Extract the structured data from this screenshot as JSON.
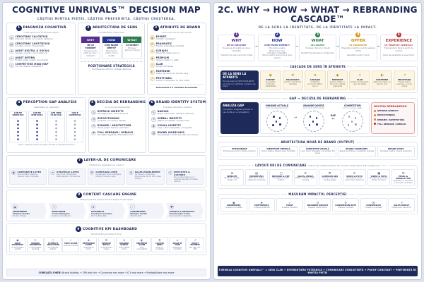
{
  "l": {
    "title": "COGNITIVE UNRIVALS™ DECISION MAP",
    "subtitle": "CÂȘTIGI MINTEA PIEȚEI. CÂȘTIGI PREFERINȚA. CÂȘTIGI CREȘTEREA.",
    "b1": {
      "n": "1",
      "t": "DIAGNOZĂ COGNITIVĂ",
      "s": "Unde ești acum în mintea pieței?",
      "items": [
        {
          "i": "qualitative-research-icon",
          "t": "CERCETARE CALITATIVĂ",
          "d": "Interviuri clienți, non-clienți, parteneri"
        },
        {
          "i": "quantitative-research-icon",
          "t": "CERCETARE CANTITATIVĂ",
          "d": "Sondaje, scoruri de percepție"
        },
        {
          "i": "digital-audit-icon",
          "t": "AUDIT DIGITAL & SOCIAL",
          "d": "Google, recenzii, social listening"
        },
        {
          "i": "internal-audit-icon",
          "t": "AUDIT INTERN",
          "d": "Echipă, sales, suport, documente"
        },
        {
          "i": "competitor-map-icon",
          "t": "COMPETITOR MIND MAP",
          "d": "Ce cred despre competitori?"
        }
      ]
    },
    "b2": {
      "n": "2",
      "t": "ARHITECTURA DE SENS",
      "s": "Fundamentul mărcii tale",
      "cols": [
        {
          "h": "WHY",
          "q": "De ce existăm?",
          "d": "Tensiunea din piață pe care o rezolvăm",
          "cls": "c-why"
        },
        {
          "h": "HOW",
          "q": "Cum facem diferit?",
          "d": "Mecanismul nostru unic & credibil",
          "cls": "c-how"
        },
        {
          "h": "WHAT",
          "q": "Ce livrăm?",
          "d": "Produse / Servicii / Soluții",
          "cls": "c-what"
        }
      ],
      "pos_t": "POZIȚIONARE STRATEGICĂ",
      "pos_d": "Promisiunea unică în mintea clientului"
    },
    "b3": {
      "n": "3",
      "t": "ATRIBUTE DE BRAND",
      "s": "Cum vrem să fim percepuți?",
      "items": [
        {
          "i": "expert-icon",
          "t": "EXPERT",
          "d": "Credibil, competent"
        },
        {
          "i": "pragmatic-icon",
          "t": "PRAGMATIC",
          "d": "Practic, orientat pe rezultate"
        },
        {
          "i": "curajos-icon",
          "t": "CURAJOS",
          "d": "Provocăm status quo-ul"
        },
        {
          "i": "premium-icon",
          "t": "PREMIUM",
          "d": "Valoare înaltă, nu ieftin"
        },
        {
          "i": "clar-icon",
          "t": "CLAR",
          "d": "Simplu de înțeles"
        },
        {
          "i": "partener-icon",
          "t": "PARTENER",
          "d": "Alături de client, pe termen lung"
        },
        {
          "i": "profitabil-icon",
          "t": "PROFITABIL",
          "d": "Impact în business, nu doar vizibil"
        }
      ],
      "note": "Selectează 5-7 atribute dominante"
    },
    "b4": {
      "n": "4",
      "t": "PERCEPTION GAP ANALYSIS",
      "s": "Realitatea vs. aspirația",
      "cols": [
        "CUM NE VEDEM NOI",
        "CUM NE VEDE PIAȚA",
        "CUM CRED CĂ NE VĂD",
        "CUM E COMPETIȚIA"
      ],
      "note": "Gap = Distanța dintre percepția actuală și aspirația de brand"
    },
    "b5": {
      "n": "5",
      "t": "DECIZIA DE REBRANDING",
      "s": "Ce nivel de intervenție?",
      "items": [
        {
          "i": "refresh-icon",
          "t": "REFRESH IDENTITY",
          "d": "Percepție bună, vizual învechit"
        },
        {
          "i": "repositioning-icon",
          "t": "REPOSITIONING",
          "d": "Confuzie, nu suntem înțeleși"
        },
        {
          "i": "rename-icon",
          "t": "RENAME / ARHITECTURĂ",
          "d": "Nume greșit, fuziune, extindere"
        },
        {
          "i": "rebuild-icon",
          "t": "FULL REBRAND / REBUILD",
          "d": "Percepție negativă, diferențiere zero"
        }
      ]
    },
    "b6": {
      "n": "6",
      "t": "BRAND IDENTITY SYSTEM",
      "s": "Expresia vizuală & verbală",
      "items": [
        {
          "i": "naming-icon",
          "t": "NAMING",
          "d": "Nume memorabil, relevant, distinctiv"
        },
        {
          "i": "verbal-identity-icon",
          "t": "VERBAL IDENTITY",
          "d": "Tagline, tonalitate, mesaje cheie"
        },
        {
          "i": "visual-identity-icon",
          "t": "VISUAL IDENTITY",
          "d": "Logo, culori, tipografie, iconografie"
        },
        {
          "i": "guidelines-icon",
          "t": "BRAND GUIDELINES",
          "d": "Consistență în toate punctele de contact"
        }
      ]
    },
    "b7": {
      "n": "7",
      "t": "LAYER-UL DE COMUNICARE",
      "s": "Arhitectura mesajelor pe niveluri",
      "cards": [
        {
          "i": "corporate-icon",
          "t": "CORPORATE LAYER",
          "d": "Cine suntem: Misiune, Viziune, Valori, Poveste"
        },
        {
          "i": "strategic-icon",
          "t": "STRATEGIC LAYER",
          "d": "De ce noi: Poziționare, Diferențiatori, Promisiune"
        },
        {
          "i": "campaign-icon",
          "t": "CAMPAIGN LAYER",
          "d": "Ce spunem lumii: Campanii, Oferte, Proiecte cheie"
        },
        {
          "i": "sales-icon",
          "t": "SALES ENABLEMENT",
          "d": "Ce folosim în vânzare: Argumente, Proof, ROI, Case studies"
        },
        {
          "i": "culture-icon",
          "t": "EMPLOYER & CULTURE",
          "d": "De ce să lucrezi la noi: Cultură, Benefits, Poveste internă"
        }
      ]
    },
    "b8": {
      "n": "8",
      "t": "CONTENT CASCADE ENGINE",
      "s": "Mesajul potrivit pentru fiecare etapă de percepție",
      "steps": [
        {
          "i": "awareness-icon",
          "t": "AWARENESS",
          "q": "Atragem atenția",
          "d": "Hook & Intrigă"
        },
        {
          "i": "education-icon",
          "t": "EDUCATION",
          "q": "Creăm înțelegere",
          "d": "Conținut educațional"
        },
        {
          "i": "authority-icon",
          "t": "AUTHORITY",
          "q": "Construim încredere",
          "d": "Proof & Expertiză"
        },
        {
          "i": "conversion-icon",
          "t": "CONVERSION",
          "q": "Motivăm decizia",
          "d": "Ofertă & ROI"
        },
        {
          "i": "loyalty-icon",
          "t": "LOYALTY & ADVOCACY",
          "q": "Transformăm în fani",
          "d": "Recomandări & Retenție"
        }
      ]
    },
    "b9": {
      "n": "9",
      "t": "COGNITIVE KPI DASHBOARD",
      "s": "Monitorizăm evoluția în timp",
      "kpis": [
        {
          "i": "aided-awareness-icon",
          "t": "AIDED AWARENESS",
          "d": "% recunoaștere asistată"
        },
        {
          "i": "unaided-awareness-icon",
          "t": "UNAIDED AWARENESS",
          "d": "% recunoaștere spontană"
        },
        {
          "i": "attribute-association-icon",
          "t": "ATTRIBUTE ASSOCIATION",
          "d": "Sunt asociate atribute"
        },
        {
          "i": "trust-score-icon",
          "t": "TRUST SCORE",
          "d": "Nivel de încredere"
        },
        {
          "i": "preference-score-icon",
          "t": "PREFERENCE SCORE",
          "d": "Preferință de brand"
        },
        {
          "i": "message-recall-icon",
          "t": "MESSAGE RECALL",
          "d": "% rememorare mesaje"
        },
        {
          "i": "branded-search-icon",
          "t": "BRANDED SEARCH",
          "d": "Volum căutări brand"
        },
        {
          "i": "sentiment-score-icon",
          "t": "SENTIMENT SCORE",
          "d": "Tonul conversațiilor"
        },
        {
          "i": "cluster-index-icon",
          "t": "CLUSTER INDEX",
          "d": "Poziție vs. competiție"
        },
        {
          "i": "share-of-voice-icon",
          "t": "SHARE OF VOICE",
          "d": "Prezență vs. competiție"
        },
        {
          "i": "business-impact-icon",
          "t": "IMPACT BUSINESS",
          "d": "Win rate / LTV / NPS"
        }
      ]
    },
    "corel": {
      "label": "CORELAȚII CHEIE:",
      "chain": "Brand sănătos → CPA mai mic → Conversie mai mare → LTV mai mare → Profitabilitate mai mare"
    }
  },
  "r": {
    "title": "2C. WHY → HOW → WHAT → REBRANDING CASCADE™",
    "subtitle": "DE LA SENS LA IDENTITATE, DE LA IDENTITATE LA IMPACT.",
    "steps": [
      {
        "n": "1",
        "t": "WHY",
        "q": "DE CE EXISTĂM?",
        "d": "Tensiunea din piață pe care o rezolvăm\n\nImpactul pe care vrem să-l creăm",
        "cls": "s-why"
      },
      {
        "n": "2",
        "t": "HOW",
        "q": "CUM FACEM DIFERIT?",
        "d": "Principiile noastre\nMecanismul unic\nAvantajul competitiv\nModul nostru propriu de a livra valoare",
        "cls": "s-how"
      },
      {
        "n": "3",
        "t": "WHAT",
        "q": "CE LIVRĂM?",
        "d": "Produse / Servicii / Soluții\n\nBeneficii funcționale și emoționale",
        "cls": "s-what"
      },
      {
        "n": "4",
        "t": "OFFER",
        "q": "CE PROMITEM?",
        "d": "Propoziția noastră unică de valoare (UVP)\n\nRezultatul pentru client",
        "cls": "s-offer"
      },
      {
        "n": "5",
        "t": "EXPERIENCE",
        "q": "CE TRĂIEȘTE CLIENTUL?",
        "d": "Experiența la fiecare punct de contact\n\nNivel de satisfacție și wow factor",
        "cls": "s-exp"
      }
    ],
    "cascade": {
      "label": "CASCADE DE SENS ÎN ATRIBUTE",
      "box_t": "DE LA SENS LA ATRIBUTE",
      "box_d": "Fiecare element WHY-HOW-WHAT se traduce în atribute cognitive de brand",
      "attrs": [
        {
          "i": "expert-icon",
          "t": "EXPERT",
          "d": "Cunoaștere profundă, credibilitate"
        },
        {
          "i": "pragmatic-icon",
          "t": "PRAGMATIC",
          "d": "Practic, orientat pe rezultate"
        },
        {
          "i": "curajos-icon",
          "t": "CURAJOS",
          "d": "Îndrăzneț, provocăm status quo-ul"
        },
        {
          "i": "premium-icon",
          "t": "PREMIUM",
          "d": "Valoare înaltă, nu discount, calitate superioară"
        },
        {
          "i": "clar-icon",
          "t": "CLAR",
          "d": "Simplu, transparent, ușor de înțeles"
        },
        {
          "i": "partener-icon",
          "t": "PARTENER",
          "d": "Alături de client, pe termen lung"
        },
        {
          "i": "profitabil-icon",
          "t": "PROFITABIL",
          "d": "Impact real în business, nu doar output"
        }
      ]
    },
    "gap": {
      "label": "GAP → DECIZIA DE REBRANDING",
      "box_t": "ANALIZA GAP",
      "box_d": "Comparăm imaginea actuală cu cea dorită și cu competitorii",
      "c1_t": "IMAGINE ACTUALĂ",
      "c1_d": "(Cum ne vede piața acum)",
      "c2_t": "IMAGINE DORITĂ",
      "c2_d": "(Cum vrem să fim văzuți)",
      "c3_t": "COMPETITORI",
      "c3_d": "(Cum îi percepe piața)",
      "gap_label": "GAP",
      "arrow": "→",
      "darrow": "↔",
      "dec_t": "DECIZIA REBRANDING",
      "dec_items": [
        "REFRESH IDENTITY",
        "REPOSITIONING",
        "RENAME / ARHITECTURĂ",
        "FULL REBRAND / REBUILD"
      ]
    },
    "arch": {
      "label": "ARHITECTURA NOUĂ DE BRAND (OUTPUT)",
      "cards": [
        {
          "t": "POZIȚIONARE",
          "d": "Promisiunea unică în mintea clientului"
        },
        {
          "t": "IDENTITATE VERBALĂ",
          "d": "Nume, Tagline, Mesaje cheie, Tonalitate"
        },
        {
          "t": "IDENTITATE VIZUALĂ",
          "d": "Logo, Culori, Tipografie, Iconografie, Stil vizual"
        },
        {
          "t": "BRAND GUIDELINES",
          "d": "Reguli de utilizare, consistență, exemple"
        },
        {
          "t": "BRAND STORY",
          "d": "Povestea noastră, dovada impactului"
        }
      ]
    },
    "layouts": {
      "label": "LAYOUT-URI DE COMUNICARE",
      "note": "(APLICĂM IDENTITATEA ÎN TOATE PUNCTELE DE CONTACT)",
      "cards": [
        {
          "i": "website-icon",
          "t": "WEBSITE",
          "d": "Structură, mesaje, design, UX"
        },
        {
          "i": "presentation-icon",
          "t": "PREZENTĂRI",
          "d": "Pitch deck, oferte, materiale comerciale"
        },
        {
          "i": "brochure-icon",
          "t": "BROȘURI & PDF",
          "d": "One-pagers, profile, audituri"
        },
        {
          "i": "social-icon",
          "t": "SOCIAL MEDIA",
          "d": "Postări, vizualuri, texte, carusele"
        },
        {
          "i": "ads-icon",
          "t": "CAMPANII ADS",
          "d": "Anunțuri, bannere, landing pages"
        },
        {
          "i": "video-icon",
          "t": "VIDEO & FOTO",
          "d": "Storytelling vizual, video brand, interviuri"
        },
        {
          "i": "video-photo-icon",
          "t": "VIDEO & FOTO",
          "d": "Storytelling, interviuri, filmări de brand"
        },
        {
          "i": "email-icon",
          "t": "EMAIL & NEWSLETTER",
          "d": "Template-uri, secvențe, comunicări constante"
        }
      ]
    },
    "measure": {
      "label": "MĂSURĂM IMPACTUL PERCEPȚIEI",
      "cards": [
        {
          "i": "m-awareness-icon",
          "t": "AWARENESS",
          "d": "Creștere notorietate"
        },
        {
          "i": "m-preference-icon",
          "t": "PREFERENCE",
          "d": "Creștere preferință"
        },
        {
          "i": "m-trust-icon",
          "t": "TRUST",
          "d": "Creștere încredere"
        },
        {
          "i": "m-branded-search-icon",
          "t": "BRANDED SEARCH",
          "d": "Creștere căutări brand"
        },
        {
          "i": "m-conversion-icon",
          "t": "CONVERSION RATE",
          "d": "Creștere conversie"
        },
        {
          "i": "m-conversations-icon",
          "t": "CONVERSAȚII",
          "d": "Creștere conversații"
        },
        {
          "i": "m-sales-impact-icon",
          "t": "SALES IMPACT",
          "d": "Creștere win rate & LTV"
        }
      ]
    },
    "formula": "FORMULA COGNITIVE UNRIVALS™ = SENS CLAR + DIFERENȚIERE PUTERNICĂ + COMUNICARE CONSISTENTĂ + PROOF CONSTANT + PREFERINȚĂ ÎN MINTEA PIEȚEI"
  }
}
